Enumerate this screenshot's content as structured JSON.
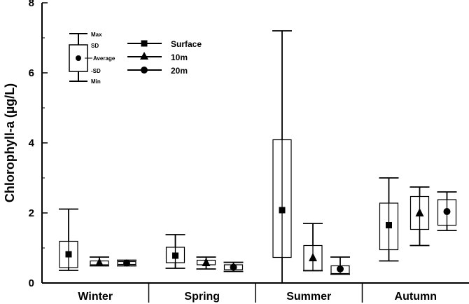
{
  "chart_data": {
    "type": "boxplot",
    "ylabel": "Chlorophyll-a (µg/L)",
    "ylim": [
      0,
      8
    ],
    "yticks": [
      "0",
      "2",
      "4",
      "6",
      "8"
    ],
    "categories": [
      "Winter",
      "Spring",
      "Summer",
      "Autumn"
    ],
    "series": [
      {
        "name": "Surface",
        "marker": "square",
        "values": [
          {
            "min": 0.36,
            "lower_sd": 0.44,
            "average": 0.82,
            "upper_sd": 1.19,
            "max": 2.11
          },
          {
            "min": 0.42,
            "lower_sd": 0.58,
            "average": 0.78,
            "upper_sd": 1.02,
            "max": 1.38
          },
          {
            "min": 0.0,
            "lower_sd": 0.73,
            "average": 2.08,
            "upper_sd": 4.09,
            "max": 7.2
          },
          {
            "min": 0.63,
            "lower_sd": 0.95,
            "average": 1.65,
            "upper_sd": 2.28,
            "max": 3.0
          }
        ]
      },
      {
        "name": "10m",
        "marker": "triangle",
        "values": [
          {
            "min": 0.49,
            "lower_sd": 0.52,
            "average": 0.58,
            "upper_sd": 0.63,
            "max": 0.74
          },
          {
            "min": 0.4,
            "lower_sd": 0.52,
            "average": 0.58,
            "upper_sd": 0.65,
            "max": 0.74
          },
          {
            "min": 0.35,
            "lower_sd": 0.36,
            "average": 0.72,
            "upper_sd": 1.07,
            "max": 1.7
          },
          {
            "min": 1.07,
            "lower_sd": 1.53,
            "average": 2.0,
            "upper_sd": 2.47,
            "max": 2.74
          }
        ]
      },
      {
        "name": "20m",
        "marker": "circle",
        "values": [
          {
            "min": 0.49,
            "lower_sd": 0.53,
            "average": 0.57,
            "upper_sd": 0.61,
            "max": 0.65
          },
          {
            "min": 0.33,
            "lower_sd": 0.38,
            "average": 0.45,
            "upper_sd": 0.52,
            "max": 0.59
          },
          {
            "min": 0.25,
            "lower_sd": 0.27,
            "average": 0.4,
            "upper_sd": 0.49,
            "max": 0.74
          },
          {
            "min": 1.5,
            "lower_sd": 1.65,
            "average": 2.04,
            "upper_sd": 2.38,
            "max": 2.6
          }
        ]
      }
    ],
    "legend": {
      "position": "top-left",
      "stat_labels": [
        "Max",
        "SD",
        "Average",
        "-SD",
        "Min"
      ],
      "series_labels": [
        "Surface",
        "10m",
        "20m"
      ]
    },
    "grid": false
  }
}
